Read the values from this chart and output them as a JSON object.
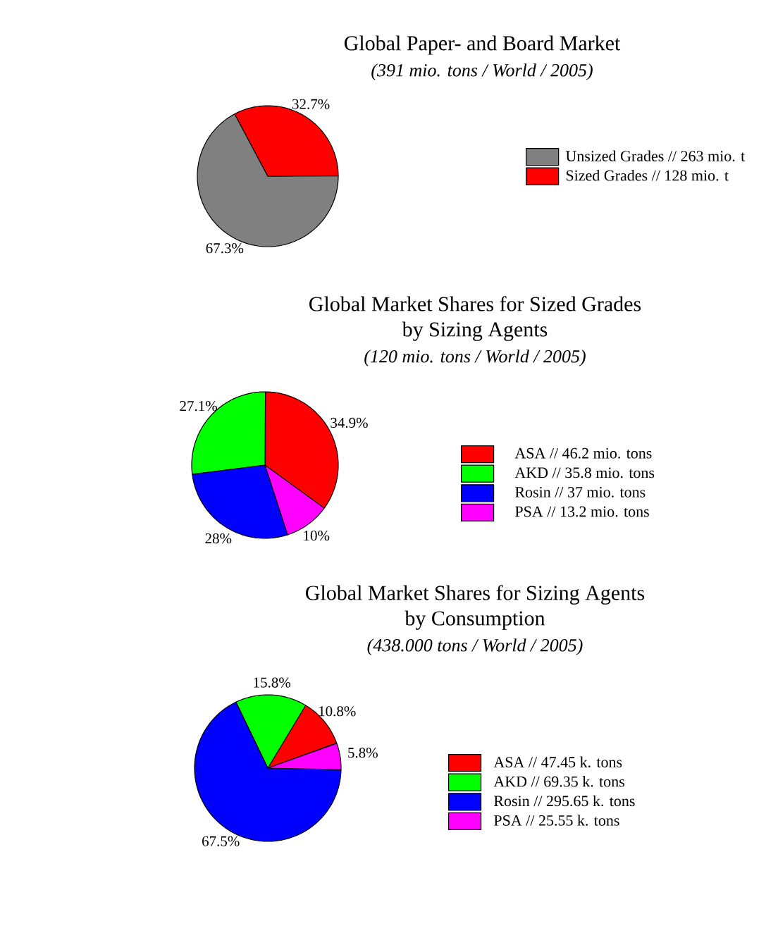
{
  "chart_data": [
    {
      "type": "pie",
      "title": "Global Paper- and Board Market",
      "subtitle": "(391 mio. tons / World / 2005)",
      "categories": [
        "Unsized Grades // 263 mio. t",
        "Sized Grades // 128 mio. t"
      ],
      "values": [
        67.3,
        32.7
      ],
      "colors": [
        "#808080",
        "#ff0000"
      ],
      "value_labels": [
        "67.3%",
        "32.7%"
      ],
      "legend": "right"
    },
    {
      "type": "pie",
      "title": "Global Market Shares for Sized Grades by Sizing Agents",
      "subtitle": "(120 mio. tons / World / 2005)",
      "categories": [
        "ASA // 46.2 mio. tons",
        "AKD // 35.8 mio. tons",
        "Rosin // 37 mio. tons",
        "PSA // 13.2 mio. tons"
      ],
      "values": [
        34.9,
        27.1,
        28,
        10
      ],
      "colors": [
        "#ff0000",
        "#00ff00",
        "#0000ff",
        "#ff00ff"
      ],
      "value_labels": [
        "34.9%",
        "27.1%",
        "28%",
        "10%"
      ],
      "legend": "right"
    },
    {
      "type": "pie",
      "title": "Global Market Shares for Sizing Agents by Consumption",
      "subtitle": "(438.000 tons / World / 2005)",
      "categories": [
        "ASA // 47.45 k. tons",
        "AKD // 69.35 k. tons",
        "Rosin // 295.65 k. tons",
        "PSA // 25.55 k. tons"
      ],
      "values": [
        10.8,
        15.8,
        67.5,
        5.8
      ],
      "colors": [
        "#ff0000",
        "#00ff00",
        "#0000ff",
        "#ff00ff"
      ],
      "value_labels": [
        "10.8%",
        "15.8%",
        "67.5%",
        "5.8%"
      ],
      "legend": "right"
    }
  ]
}
